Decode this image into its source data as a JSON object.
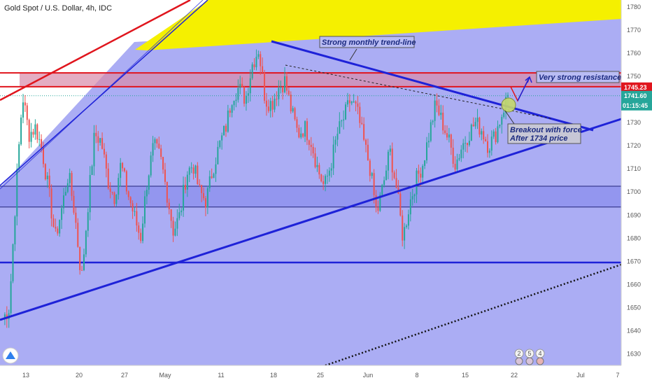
{
  "header": {
    "symbol_title": "Gold Spot / U.S. Dollar, 4h, IDC"
  },
  "colors": {
    "background_zone": "#a7a9f3",
    "up_candle": "#26a69a",
    "down_candle": "#ef5350",
    "trendline": "#1e22d8",
    "resistance": "#e0151d",
    "yellow_channel": "#f5f000",
    "price_tag": "#e0151d",
    "last_tag": "#26a69a"
  },
  "annotations": {
    "monthly_trendline": "Strong monthly trend-line",
    "resistance": "Very strong resistance",
    "breakout_line1": "Breakout with force",
    "breakout_line2": "After 1734 price"
  },
  "price_tags": {
    "resistance_price": "1745.23",
    "last_price": "1741.60",
    "countdown": "01:15:45"
  },
  "event_badges": [
    "2",
    "5",
    "4"
  ],
  "chart_data": {
    "type": "candlestick",
    "title": "Gold Spot / U.S. Dollar, 4h, IDC",
    "ylim": [
      1625,
      1783
    ],
    "y_ticks": [
      1630,
      1640,
      1650,
      1660,
      1670,
      1680,
      1690,
      1700,
      1710,
      1720,
      1730,
      1740,
      1750,
      1760,
      1770,
      1780
    ],
    "x_ticks": [
      "13",
      "20",
      "27",
      "May",
      "11",
      "18",
      "25",
      "Jun",
      "8",
      "15",
      "22",
      "Jul",
      "7"
    ],
    "series_anchor_closes": [
      1645,
      1650,
      1700,
      1742,
      1725,
      1728,
      1718,
      1700,
      1680,
      1693,
      1708,
      1690,
      1662,
      1695,
      1725,
      1722,
      1705,
      1698,
      1712,
      1700,
      1690,
      1680,
      1705,
      1720,
      1715,
      1700,
      1683,
      1690,
      1708,
      1712,
      1700,
      1696,
      1710,
      1720,
      1728,
      1742,
      1745,
      1740,
      1755,
      1762,
      1740,
      1738,
      1745,
      1748,
      1735,
      1725,
      1728,
      1722,
      1710,
      1702,
      1712,
      1725,
      1732,
      1740,
      1735,
      1722,
      1710,
      1690,
      1703,
      1718,
      1702,
      1680,
      1695,
      1705,
      1712,
      1725,
      1738,
      1730,
      1722,
      1712,
      1720,
      1725,
      1730,
      1727,
      1720,
      1724,
      1733,
      1742
    ],
    "levels": {
      "resistance_zone": [
        1745.5,
        1751.5
      ],
      "support_zone": [
        1693.5,
        1702.5
      ],
      "support_line": 1669.5,
      "dotted_last_price": 1741.6
    }
  }
}
